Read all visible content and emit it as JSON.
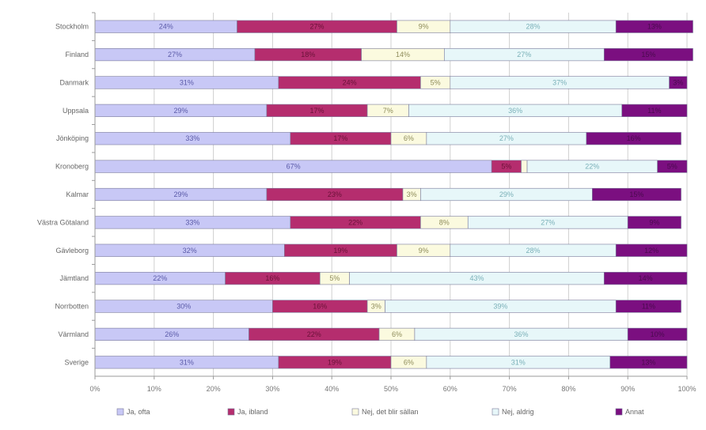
{
  "chart_data": {
    "type": "bar",
    "stacked": true,
    "orientation": "horizontal",
    "percent": true,
    "categories": [
      "Stockholm",
      "Finland",
      "Danmark",
      "Uppsala",
      "Jönköping",
      "Kronoberg",
      "Kalmar",
      "Västra Götaland",
      "Gävleborg",
      "Jämtland",
      "Norrbotten",
      "Värmland",
      "Sverige"
    ],
    "series": [
      {
        "name": "",
        "values": [
          24,
          27,
          31,
          29,
          33,
          67,
          29,
          33,
          32,
          22,
          30,
          26,
          31
        ],
        "color": "#c8c8f6",
        "label_color": "#5a5aa8"
      },
      {
        "name": "",
        "values": [
          27,
          18,
          24,
          17,
          17,
          5,
          23,
          22,
          19,
          16,
          16,
          22,
          19
        ],
        "color": "#b52d6e",
        "label_color": "#6a1238"
      },
      {
        "name": "",
        "values": [
          9,
          14,
          5,
          7,
          6,
          1,
          3,
          8,
          9,
          5,
          3,
          6,
          6
        ],
        "color": "#fbfadf",
        "label_color": "#8e8c5a"
      },
      {
        "name": "",
        "values": [
          28,
          27,
          37,
          36,
          27,
          22,
          29,
          27,
          28,
          43,
          39,
          36,
          31
        ],
        "color": "#e7f7f9",
        "label_color": "#7ab0b8"
      },
      {
        "name": "",
        "values": [
          13,
          15,
          3,
          11,
          16,
          5,
          15,
          9,
          12,
          14,
          11,
          10,
          13
        ],
        "color": "#7b0f80",
        "label_color": "#4a0a4e"
      }
    ],
    "xlim": [
      0,
      100
    ],
    "xticks": [
      "0%",
      "10%",
      "20%",
      "30%",
      "40%",
      "50%",
      "60%",
      "70%",
      "80%",
      "90%",
      "100%"
    ],
    "legend_position": "bottom",
    "legend_entries": [
      "Ja, ofta",
      "Ja, ibland",
      "Nej, det blir sällan",
      "Nej, aldrig",
      "Annat"
    ],
    "grid": true,
    "label_min_value": 2
  }
}
